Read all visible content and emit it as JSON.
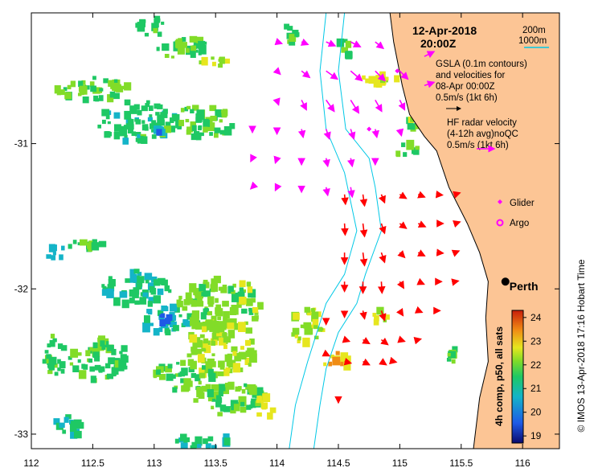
{
  "title": {
    "date": "12-Apr-2018",
    "time": "20:00Z"
  },
  "legend": {
    "isobaths": [
      "200m",
      "1000m"
    ],
    "gsla_lines": [
      "GSLA (0.1m contours)",
      "and velocities for",
      "08-Apr 00:00Z",
      "0.5m/s (1kt 6h)"
    ],
    "hf_lines": [
      "HF radar velocity",
      "(4-12h avg)noQC",
      "0.5m/s (1kt 6h)"
    ],
    "platforms": [
      {
        "label": "Glider",
        "color": "#ff00ff",
        "icon": "diamond-icon"
      },
      {
        "label": "Argo",
        "color": "#ff00ff",
        "icon": "circle-icon"
      }
    ]
  },
  "city": {
    "name": "Perth",
    "lon": 115.86,
    "lat": -31.95
  },
  "colorbar": {
    "label": "4h comp, p50, all sats",
    "ticks": [
      24,
      23,
      22,
      21,
      20,
      19
    ],
    "min": 18.7,
    "max": 24.3
  },
  "axes": {
    "x_ticks": [
      "112",
      "112.5",
      "113",
      "113.5",
      "114",
      "114.5",
      "115",
      "115.5",
      "116"
    ],
    "y_ticks": [
      "-31",
      "-32",
      "-33"
    ],
    "xlim": [
      112,
      116.3
    ],
    "ylim": [
      -33.1,
      -30.1
    ]
  },
  "credit": "© IMOS 13-Apr-2018 17:16 Hobart Time",
  "colors": {
    "land": "#fcc595",
    "altimetry_vectors": "#ff00ff",
    "hf_radar_vectors": "#ff0000",
    "isobath": "#00c8e6",
    "sst_ramp": [
      "#0a0a6e",
      "#1e5ae6",
      "#14b4c8",
      "#1ec864",
      "#82dc28",
      "#e6e61e",
      "#f08c14",
      "#c81e0a"
    ]
  },
  "chart_data": {
    "type": "map",
    "sst_patches": [
      {
        "lon": 112.5,
        "lat": -30.62,
        "temp": 21.6,
        "rx": 0.3,
        "ry": 0.09
      },
      {
        "lon": 112.87,
        "lat": -30.85,
        "temp": 21.1,
        "rx": 0.35,
        "ry": 0.14
      },
      {
        "lon": 113.4,
        "lat": -30.85,
        "temp": 21.4,
        "rx": 0.28,
        "ry": 0.11
      },
      {
        "lon": 113.25,
        "lat": -30.35,
        "temp": 21.3,
        "rx": 0.22,
        "ry": 0.08
      },
      {
        "lon": 113.5,
        "lat": -30.45,
        "temp": 22.2,
        "rx": 0.12,
        "ry": 0.05
      },
      {
        "lon": 114.1,
        "lat": -30.25,
        "temp": 21.4,
        "rx": 0.09,
        "ry": 0.06
      },
      {
        "lon": 113.0,
        "lat": -30.2,
        "temp": 21.2,
        "rx": 0.15,
        "ry": 0.06
      },
      {
        "lon": 112.45,
        "lat": -31.7,
        "temp": 21.3,
        "rx": 0.15,
        "ry": 0.05
      },
      {
        "lon": 112.2,
        "lat": -31.75,
        "temp": 20.8,
        "rx": 0.1,
        "ry": 0.05
      },
      {
        "lon": 112.2,
        "lat": -32.45,
        "temp": 21.2,
        "rx": 0.1,
        "ry": 0.15
      },
      {
        "lon": 112.85,
        "lat": -32.0,
        "temp": 21.1,
        "rx": 0.28,
        "ry": 0.12
      },
      {
        "lon": 112.55,
        "lat": -32.48,
        "temp": 21.4,
        "rx": 0.24,
        "ry": 0.15
      },
      {
        "lon": 113.1,
        "lat": -32.22,
        "temp": 20.7,
        "rx": 0.18,
        "ry": 0.1
      },
      {
        "lon": 113.55,
        "lat": -32.1,
        "temp": 21.8,
        "rx": 0.35,
        "ry": 0.18
      },
      {
        "lon": 113.55,
        "lat": -32.4,
        "temp": 22.0,
        "rx": 0.3,
        "ry": 0.2
      },
      {
        "lon": 113.25,
        "lat": -32.6,
        "temp": 21.5,
        "rx": 0.25,
        "ry": 0.1
      },
      {
        "lon": 113.6,
        "lat": -32.75,
        "temp": 21.6,
        "rx": 0.3,
        "ry": 0.12
      },
      {
        "lon": 113.9,
        "lat": -32.8,
        "temp": 22.4,
        "rx": 0.1,
        "ry": 0.08
      },
      {
        "lon": 113.4,
        "lat": -33.05,
        "temp": 20.9,
        "rx": 0.25,
        "ry": 0.05
      },
      {
        "lon": 112.3,
        "lat": -32.95,
        "temp": 21.0,
        "rx": 0.15,
        "ry": 0.07
      },
      {
        "lon": 114.25,
        "lat": -32.25,
        "temp": 22.2,
        "rx": 0.14,
        "ry": 0.13
      },
      {
        "lon": 114.5,
        "lat": -32.5,
        "temp": 22.7,
        "rx": 0.12,
        "ry": 0.06
      },
      {
        "lon": 114.85,
        "lat": -32.2,
        "temp": 22.4,
        "rx": 0.07,
        "ry": 0.06
      },
      {
        "lon": 114.85,
        "lat": -30.55,
        "temp": 22.4,
        "rx": 0.15,
        "ry": 0.06
      },
      {
        "lon": 115.15,
        "lat": -30.85,
        "temp": 21.8,
        "rx": 0.08,
        "ry": 0.06
      },
      {
        "lon": 115.05,
        "lat": -31.05,
        "temp": 21.7,
        "rx": 0.1,
        "ry": 0.06
      },
      {
        "lon": 115.45,
        "lat": -32.45,
        "temp": 21.5,
        "rx": 0.06,
        "ry": 0.08
      },
      {
        "lon": 114.55,
        "lat": -30.35,
        "temp": 21.4,
        "rx": 0.05,
        "ry": 0.08
      },
      {
        "lon": 113.05,
        "lat": -30.9,
        "temp": 20.5,
        "rx": 0.05,
        "ry": 0.03
      },
      {
        "lon": 113.1,
        "lat": -32.2,
        "temp": 19.8,
        "rx": 0.06,
        "ry": 0.04
      }
    ],
    "altimetry_vectors": [
      {
        "lon": 114.0,
        "lat": -30.3,
        "u": 0.15,
        "v": -0.05
      },
      {
        "lon": 114.2,
        "lat": -30.3,
        "u": 0.2,
        "v": -0.08
      },
      {
        "lon": 114.4,
        "lat": -30.3,
        "u": 0.28,
        "v": -0.12
      },
      {
        "lon": 114.6,
        "lat": -30.3,
        "u": 0.3,
        "v": -0.15
      },
      {
        "lon": 114.8,
        "lat": -30.3,
        "u": 0.25,
        "v": -0.2
      },
      {
        "lon": 114.0,
        "lat": -30.5,
        "u": 0.1,
        "v": -0.1
      },
      {
        "lon": 114.2,
        "lat": -30.5,
        "u": 0.25,
        "v": -0.2
      },
      {
        "lon": 114.4,
        "lat": -30.5,
        "u": 0.35,
        "v": -0.25
      },
      {
        "lon": 114.6,
        "lat": -30.5,
        "u": 0.35,
        "v": -0.3
      },
      {
        "lon": 114.8,
        "lat": -30.5,
        "u": 0.3,
        "v": -0.3
      },
      {
        "lon": 115.0,
        "lat": -30.5,
        "u": 0.25,
        "v": -0.25
      },
      {
        "lon": 114.0,
        "lat": -30.7,
        "u": 0.05,
        "v": -0.15
      },
      {
        "lon": 114.2,
        "lat": -30.7,
        "u": 0.15,
        "v": -0.3
      },
      {
        "lon": 114.4,
        "lat": -30.7,
        "u": 0.25,
        "v": -0.35
      },
      {
        "lon": 114.6,
        "lat": -30.7,
        "u": 0.25,
        "v": -0.4
      },
      {
        "lon": 114.8,
        "lat": -30.7,
        "u": 0.2,
        "v": -0.35
      },
      {
        "lon": 115.0,
        "lat": -30.7,
        "u": 0.15,
        "v": -0.3
      },
      {
        "lon": 114.0,
        "lat": -30.9,
        "u": 0.0,
        "v": -0.15
      },
      {
        "lon": 114.2,
        "lat": -30.9,
        "u": 0.05,
        "v": -0.25
      },
      {
        "lon": 114.4,
        "lat": -30.9,
        "u": 0.1,
        "v": -0.3
      },
      {
        "lon": 114.6,
        "lat": -30.9,
        "u": 0.1,
        "v": -0.3
      },
      {
        "lon": 114.8,
        "lat": -30.9,
        "u": 0.05,
        "v": -0.25
      },
      {
        "lon": 115.0,
        "lat": -30.9,
        "u": 0.05,
        "v": -0.2
      },
      {
        "lon": 114.0,
        "lat": -31.1,
        "u": -0.05,
        "v": -0.15
      },
      {
        "lon": 114.2,
        "lat": -31.1,
        "u": 0.0,
        "v": -0.2
      },
      {
        "lon": 114.4,
        "lat": -31.1,
        "u": 0.05,
        "v": -0.25
      },
      {
        "lon": 114.6,
        "lat": -31.1,
        "u": 0.05,
        "v": -0.25
      },
      {
        "lon": 114.8,
        "lat": -31.1,
        "u": 0.0,
        "v": -0.2
      },
      {
        "lon": 114.0,
        "lat": -31.3,
        "u": -0.05,
        "v": -0.1
      },
      {
        "lon": 114.2,
        "lat": -31.3,
        "u": 0.0,
        "v": -0.15
      },
      {
        "lon": 114.4,
        "lat": -31.3,
        "u": 0.05,
        "v": -0.25
      },
      {
        "lon": 114.6,
        "lat": -31.3,
        "u": 0.05,
        "v": -0.3
      },
      {
        "lon": 113.8,
        "lat": -31.1,
        "u": -0.05,
        "v": -0.1
      },
      {
        "lon": 113.8,
        "lat": -30.9,
        "u": 0.0,
        "v": -0.1
      },
      {
        "lon": 113.8,
        "lat": -31.3,
        "u": -0.05,
        "v": -0.05
      },
      {
        "lon": 115.2,
        "lat": -30.4,
        "u": 0.3,
        "v": 0.15
      },
      {
        "lon": 115.2,
        "lat": -30.6,
        "u": 0.3,
        "v": 0.1
      }
    ],
    "hf_radar_vectors": [
      {
        "lon": 114.55,
        "lat": -31.35,
        "u": 0.03,
        "v": -0.3
      },
      {
        "lon": 114.7,
        "lat": -31.35,
        "u": 0.05,
        "v": -0.35
      },
      {
        "lon": 114.85,
        "lat": -31.35,
        "u": 0.1,
        "v": -0.25
      },
      {
        "lon": 115.0,
        "lat": -31.35,
        "u": 0.2,
        "v": -0.12
      },
      {
        "lon": 115.15,
        "lat": -31.35,
        "u": 0.2,
        "v": -0.08
      },
      {
        "lon": 115.3,
        "lat": -31.35,
        "u": 0.18,
        "v": -0.02
      },
      {
        "lon": 115.45,
        "lat": -31.35,
        "u": 0.15,
        "v": 0.05
      },
      {
        "lon": 114.55,
        "lat": -31.55,
        "u": 0.02,
        "v": -0.35
      },
      {
        "lon": 114.7,
        "lat": -31.55,
        "u": 0.05,
        "v": -0.4
      },
      {
        "lon": 114.85,
        "lat": -31.55,
        "u": 0.1,
        "v": -0.3
      },
      {
        "lon": 115.0,
        "lat": -31.55,
        "u": 0.2,
        "v": -0.15
      },
      {
        "lon": 115.15,
        "lat": -31.55,
        "u": 0.22,
        "v": -0.1
      },
      {
        "lon": 115.3,
        "lat": -31.55,
        "u": 0.2,
        "v": 0.0
      },
      {
        "lon": 115.45,
        "lat": -31.55,
        "u": 0.15,
        "v": 0.05
      },
      {
        "lon": 114.55,
        "lat": -31.75,
        "u": 0.0,
        "v": -0.35
      },
      {
        "lon": 114.7,
        "lat": -31.75,
        "u": 0.05,
        "v": -0.4
      },
      {
        "lon": 114.85,
        "lat": -31.75,
        "u": 0.1,
        "v": -0.3
      },
      {
        "lon": 115.0,
        "lat": -31.75,
        "u": 0.15,
        "v": -0.15
      },
      {
        "lon": 115.15,
        "lat": -31.75,
        "u": 0.2,
        "v": -0.1
      },
      {
        "lon": 115.3,
        "lat": -31.75,
        "u": 0.2,
        "v": -0.02
      },
      {
        "lon": 115.45,
        "lat": -31.75,
        "u": 0.12,
        "v": 0.05
      },
      {
        "lon": 114.55,
        "lat": -31.95,
        "u": 0.0,
        "v": -0.3
      },
      {
        "lon": 114.7,
        "lat": -31.95,
        "u": 0.0,
        "v": -0.35
      },
      {
        "lon": 114.85,
        "lat": -31.95,
        "u": 0.02,
        "v": -0.35
      },
      {
        "lon": 115.0,
        "lat": -31.95,
        "u": 0.12,
        "v": -0.2
      },
      {
        "lon": 115.15,
        "lat": -31.95,
        "u": 0.18,
        "v": -0.08
      },
      {
        "lon": 115.3,
        "lat": -31.95,
        "u": 0.15,
        "v": 0.0
      },
      {
        "lon": 115.45,
        "lat": -31.95,
        "u": 0.1,
        "v": 0.02
      },
      {
        "lon": 114.55,
        "lat": -32.15,
        "u": 0.0,
        "v": -0.2
      },
      {
        "lon": 114.7,
        "lat": -32.15,
        "u": 0.05,
        "v": -0.25
      },
      {
        "lon": 114.85,
        "lat": -32.15,
        "u": 0.1,
        "v": -0.3
      },
      {
        "lon": 115.0,
        "lat": -32.15,
        "u": 0.1,
        "v": -0.15
      },
      {
        "lon": 115.15,
        "lat": -32.15,
        "u": 0.12,
        "v": -0.05
      },
      {
        "lon": 115.3,
        "lat": -32.15,
        "u": 0.1,
        "v": 0.0
      },
      {
        "lon": 114.55,
        "lat": -32.35,
        "u": 0.15,
        "v": -0.05
      },
      {
        "lon": 114.7,
        "lat": -32.35,
        "u": 0.2,
        "v": -0.12
      },
      {
        "lon": 114.85,
        "lat": -32.35,
        "u": 0.2,
        "v": -0.15
      },
      {
        "lon": 115.0,
        "lat": -32.35,
        "u": 0.15,
        "v": -0.05
      },
      {
        "lon": 115.15,
        "lat": -32.35,
        "u": 0.08,
        "v": 0.02
      },
      {
        "lon": 114.55,
        "lat": -32.5,
        "u": 0.2,
        "v": -0.05
      },
      {
        "lon": 114.7,
        "lat": -32.5,
        "u": 0.2,
        "v": -0.1
      },
      {
        "lon": 114.85,
        "lat": -32.5,
        "u": 0.15,
        "v": -0.1
      },
      {
        "lon": 114.95,
        "lat": -32.5,
        "u": 0.08,
        "v": -0.02
      },
      {
        "lon": 114.5,
        "lat": -32.75,
        "u": 0.0,
        "v": -0.15
      },
      {
        "lon": 114.4,
        "lat": -32.2,
        "u": 0.0,
        "v": -0.2
      },
      {
        "lon": 114.4,
        "lat": -32.45,
        "u": 0.1,
        "v": -0.05
      }
    ],
    "glider_positions": [
      {
        "lon": 114.98,
        "lat": -30.5
      },
      {
        "lon": 114.75,
        "lat": -30.9
      }
    ],
    "argo_positions": [],
    "isobaths": {
      "depth_200m": [
        [
          114.55,
          -30.1
        ],
        [
          114.5,
          -30.5
        ],
        [
          114.56,
          -30.9
        ],
        [
          114.75,
          -31.1
        ],
        [
          114.8,
          -31.3
        ],
        [
          114.85,
          -31.6
        ],
        [
          114.72,
          -31.9
        ],
        [
          114.65,
          -32.1
        ],
        [
          114.5,
          -32.3
        ],
        [
          114.4,
          -32.55
        ],
        [
          114.35,
          -32.8
        ],
        [
          114.3,
          -33.1
        ]
      ],
      "depth_1000m": [
        [
          114.4,
          -30.1
        ],
        [
          114.35,
          -30.5
        ],
        [
          114.4,
          -30.9
        ],
        [
          114.55,
          -31.2
        ],
        [
          114.65,
          -31.6
        ],
        [
          114.55,
          -31.9
        ],
        [
          114.4,
          -32.1
        ],
        [
          114.25,
          -32.5
        ],
        [
          114.15,
          -32.8
        ],
        [
          114.1,
          -33.1
        ]
      ]
    },
    "coastline": [
      [
        114.92,
        -30.1
      ],
      [
        114.95,
        -30.3
      ],
      [
        115.02,
        -30.6
      ],
      [
        115.08,
        -30.8
      ],
      [
        115.2,
        -30.95
      ],
      [
        115.3,
        -31.05
      ],
      [
        115.4,
        -31.3
      ],
      [
        115.55,
        -31.55
      ],
      [
        115.65,
        -31.75
      ],
      [
        115.72,
        -31.95
      ],
      [
        115.7,
        -32.2
      ],
      [
        115.72,
        -32.5
      ],
      [
        115.65,
        -32.75
      ],
      [
        115.6,
        -33.1
      ]
    ]
  }
}
